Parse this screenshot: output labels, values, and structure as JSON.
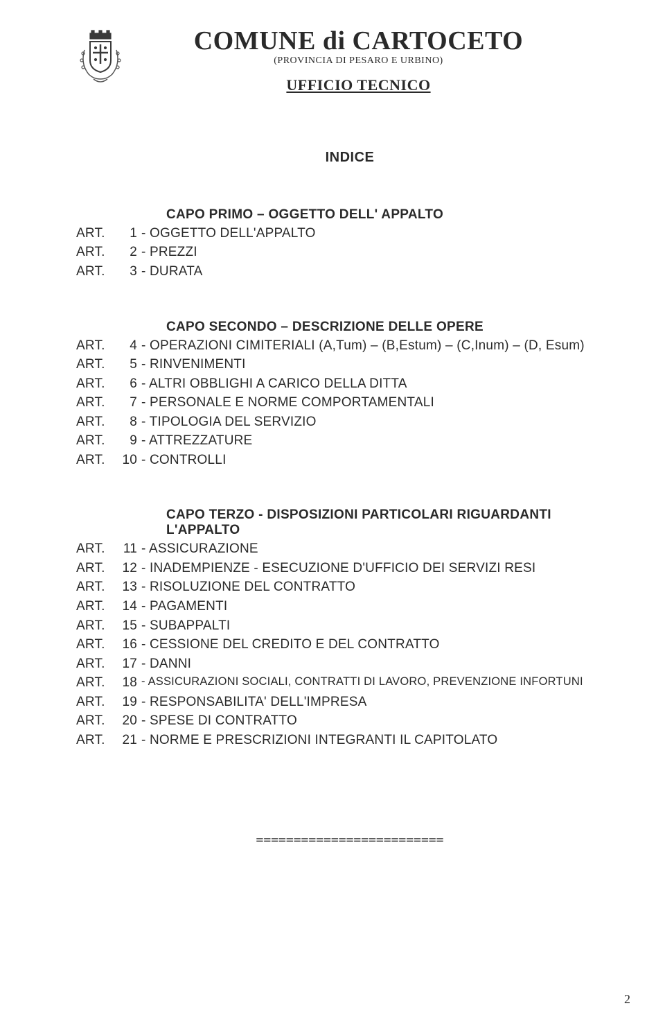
{
  "header": {
    "main_title": "COMUNE di CARTOCETO",
    "subtitle": "(PROVINCIA DI PESARO E URBINO)",
    "office": "UFFICIO TECNICO"
  },
  "indice_label": "INDICE",
  "sections": [
    {
      "capo": "CAPO PRIMO – OGGETTO DELL' APPALTO",
      "items": [
        {
          "label": "ART.",
          "num": "1",
          "desc": "- OGGETTO DELL'APPALTO"
        },
        {
          "label": "ART.",
          "num": "2",
          "desc": "- PREZZI"
        },
        {
          "label": "ART.",
          "num": "3",
          "desc": "- DURATA"
        }
      ]
    },
    {
      "capo": "CAPO SECONDO – DESCRIZIONE DELLE OPERE",
      "items": [
        {
          "label": "ART.",
          "num": "4",
          "desc": "- OPERAZIONI CIMITERIALI (A,Tum) – (B,Estum) – (C,Inum) – (D, Esum)"
        },
        {
          "label": "ART.",
          "num": "5",
          "desc": "- RINVENIMENTI"
        },
        {
          "label": "ART.",
          "num": "6",
          "desc": "- ALTRI OBBLIGHI A CARICO DELLA DITTA"
        },
        {
          "label": "ART.",
          "num": "7",
          "desc": "- PERSONALE E NORME COMPORTAMENTALI"
        },
        {
          "label": "ART.",
          "num": "8",
          "desc": "- TIPOLOGIA DEL SERVIZIO"
        },
        {
          "label": "ART.",
          "num": "9",
          "desc": "- ATTREZZATURE"
        },
        {
          "label": "ART.",
          "num": "10",
          "desc": "- CONTROLLI"
        }
      ]
    },
    {
      "capo": "CAPO TERZO - DISPOSIZIONI PARTICOLARI RIGUARDANTI L'APPALTO",
      "items": [
        {
          "label": "ART.",
          "num": "11",
          "desc": "- ASSICURAZIONE"
        },
        {
          "label": "ART.",
          "num": "12",
          "desc": "- INADEMPIENZE - ESECUZIONE D'UFFICIO DEI SERVIZI RESI"
        },
        {
          "label": "ART.",
          "num": "13",
          "desc": "- RISOLUZIONE DEL CONTRATTO"
        },
        {
          "label": "ART.",
          "num": "14",
          "desc": "- PAGAMENTI"
        },
        {
          "label": "ART.",
          "num": "15",
          "desc": "- SUBAPPALTI"
        },
        {
          "label": "ART.",
          "num": "16",
          "desc": "- CESSIONE DEL CREDITO E DEL CONTRATTO"
        },
        {
          "label": "ART.",
          "num": "17",
          "desc": "- DANNI"
        },
        {
          "label": "ART.",
          "num": "18",
          "desc": "- ASSICURAZIONI SOCIALI, CONTRATTI DI LAVORO, PREVENZIONE INFORTUNI",
          "small": true
        },
        {
          "label": "ART.",
          "num": "19",
          "desc": "- RESPONSABILITA' DELL'IMPRESA"
        },
        {
          "label": "ART.",
          "num": "20",
          "desc": "- SPESE DI CONTRATTO"
        },
        {
          "label": "ART.",
          "num": "21",
          "desc": "- NORME E PRESCRIZIONI INTEGRANTI IL CAPITOLATO"
        }
      ]
    }
  ],
  "separator": "=========================",
  "page_number": "2",
  "logo": {
    "crown_fill": "#3a3a3a",
    "shield_stroke": "#3a3a3a",
    "leaf_stroke": "#555555"
  }
}
